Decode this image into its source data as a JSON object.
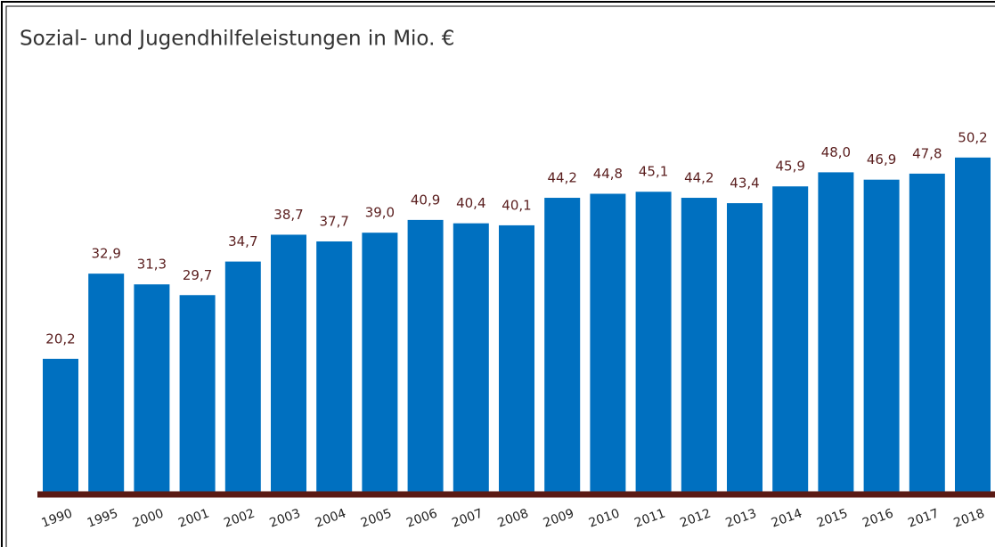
{
  "chart_data": {
    "type": "bar",
    "title": "Sozial- und Jugendhilfeleistungen in Mio. €",
    "categories": [
      "1990",
      "1995",
      "2000",
      "2001",
      "2002",
      "2003",
      "2004",
      "2005",
      "2006",
      "2007",
      "2008",
      "2009",
      "2010",
      "2011",
      "2012",
      "2013",
      "2014",
      "2015",
      "2016",
      "2017",
      "2018"
    ],
    "values": [
      20.2,
      32.9,
      31.3,
      29.7,
      34.7,
      38.7,
      37.7,
      39.0,
      40.9,
      40.4,
      40.1,
      44.2,
      44.8,
      45.1,
      44.2,
      43.4,
      45.9,
      48.0,
      46.9,
      47.8,
      50.2
    ],
    "value_labels": [
      "20,2",
      "32,9",
      "31,3",
      "29,7",
      "34,7",
      "38,7",
      "37,7",
      "39,0",
      "40,9",
      "40,4",
      "40,1",
      "44,2",
      "44,8",
      "45,1",
      "44,2",
      "43,4",
      "45,9",
      "48,0",
      "46,9",
      "47,8",
      "50,2"
    ],
    "color": "#0070c0",
    "ylim": [
      0,
      60
    ]
  }
}
